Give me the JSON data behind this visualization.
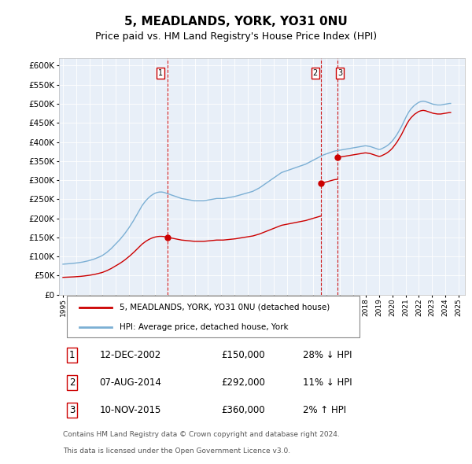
{
  "title": "5, MEADLANDS, YORK, YO31 0NU",
  "subtitle": "Price paid vs. HM Land Registry's House Price Index (HPI)",
  "title_fontsize": 11,
  "subtitle_fontsize": 9,
  "hpi_color": "#7bafd4",
  "price_color": "#cc0000",
  "vline_color": "#cc0000",
  "background_color": "#e8eff8",
  "ylim": [
    0,
    620000
  ],
  "yticks": [
    0,
    50000,
    100000,
    150000,
    200000,
    250000,
    300000,
    350000,
    400000,
    450000,
    500000,
    550000,
    600000
  ],
  "purchases": [
    {
      "date": 2002.95,
      "price": 150000,
      "label": "1"
    },
    {
      "date": 2014.6,
      "price": 292000,
      "label": "2"
    },
    {
      "date": 2015.86,
      "price": 360000,
      "label": "3"
    }
  ],
  "legend_entries": [
    "5, MEADLANDS, YORK, YO31 0NU (detached house)",
    "HPI: Average price, detached house, York"
  ],
  "table_rows": [
    {
      "num": "1",
      "date": "12-DEC-2002",
      "price": "£150,000",
      "info": "28% ↓ HPI"
    },
    {
      "num": "2",
      "date": "07-AUG-2014",
      "price": "£292,000",
      "info": "11% ↓ HPI"
    },
    {
      "num": "3",
      "date": "10-NOV-2015",
      "price": "£360,000",
      "info": "2% ↑ HPI"
    }
  ],
  "footnote1": "Contains HM Land Registry data © Crown copyright and database right 2024.",
  "footnote2": "This data is licensed under the Open Government Licence v3.0.",
  "hpi_monthly": {
    "start_year": 1995.0,
    "step": 0.08333,
    "values": [
      80000,
      80200,
      80400,
      80600,
      80800,
      81000,
      81200,
      81500,
      81800,
      82100,
      82400,
      82700,
      83000,
      83400,
      83800,
      84200,
      84600,
      85000,
      85600,
      86200,
      86800,
      87400,
      88000,
      88800,
      89600,
      90400,
      91200,
      92000,
      93000,
      94000,
      95200,
      96400,
      97600,
      98800,
      100000,
      101500,
      103000,
      105000,
      107000,
      109000,
      111000,
      113500,
      116000,
      118500,
      121000,
      124000,
      127000,
      130000,
      133000,
      136000,
      139000,
      142000,
      145000,
      148500,
      152000,
      155500,
      159000,
      163000,
      167000,
      171000,
      175000,
      179500,
      184000,
      188500,
      193000,
      198000,
      203000,
      208000,
      213000,
      218000,
      223000,
      228000,
      233000,
      237000,
      241000,
      244500,
      248000,
      251000,
      254000,
      256500,
      259000,
      261000,
      263000,
      264500,
      266000,
      267000,
      268000,
      268500,
      269000,
      269000,
      269000,
      268500,
      268000,
      267000,
      266000,
      265000,
      264000,
      263000,
      262000,
      261000,
      260000,
      259000,
      258000,
      257000,
      256000,
      255000,
      254000,
      253000,
      252000,
      251500,
      251000,
      250500,
      250000,
      249500,
      249000,
      248500,
      248000,
      247500,
      247000,
      246500,
      246000,
      246000,
      246000,
      246000,
      246000,
      246000,
      246000,
      246000,
      246000,
      246500,
      247000,
      247500,
      248000,
      248500,
      249000,
      249500,
      250000,
      250500,
      251000,
      251500,
      252000,
      252000,
      252000,
      252000,
      252000,
      252000,
      252000,
      252500,
      253000,
      253500,
      254000,
      254500,
      255000,
      255500,
      256000,
      256500,
      257000,
      257800,
      258600,
      259400,
      260200,
      261000,
      261800,
      262600,
      263400,
      264200,
      265000,
      265800,
      266600,
      267400,
      268200,
      269000,
      270000,
      271000,
      272500,
      274000,
      275500,
      277000,
      278500,
      280000,
      282000,
      284000,
      286000,
      288000,
      290000,
      292000,
      294000,
      296000,
      298000,
      300000,
      302000,
      304000,
      306000,
      308000,
      310000,
      312000,
      314000,
      316000,
      318000,
      320000,
      321000,
      322000,
      323000,
      324000,
      325000,
      326000,
      327000,
      328000,
      329000,
      330000,
      331000,
      332000,
      333000,
      334000,
      335000,
      336000,
      337000,
      338000,
      339000,
      340000,
      341000,
      342000,
      343500,
      345000,
      346500,
      348000,
      349500,
      351000,
      352500,
      354000,
      355500,
      357000,
      358500,
      360000,
      361500,
      363000,
      364500,
      366000,
      367000,
      368000,
      369000,
      370000,
      371000,
      372000,
      373000,
      374000,
      375000,
      376000,
      376500,
      377000,
      377500,
      378000,
      378500,
      379000,
      379500,
      380000,
      380500,
      381000,
      381500,
      382000,
      382500,
      383000,
      383500,
      384000,
      384500,
      385000,
      385500,
      386000,
      386500,
      387000,
      387500,
      388000,
      388500,
      389000,
      389500,
      390000,
      390000,
      389500,
      389000,
      388500,
      388000,
      387000,
      386000,
      385000,
      384000,
      383000,
      382000,
      381000,
      380500,
      381000,
      382000,
      383500,
      385000,
      386500,
      388000,
      390000,
      392000,
      394500,
      397000,
      400000,
      403000,
      407000,
      411000,
      415000,
      419000,
      424000,
      429000,
      434000,
      439000,
      445000,
      451000,
      457000,
      463000,
      469000,
      474000,
      479000,
      483000,
      487000,
      490000,
      493000,
      496000,
      498000,
      500000,
      502000,
      504000,
      505000,
      506000,
      506500,
      507000,
      506500,
      506000,
      505000,
      504000,
      503000,
      502000,
      501000,
      500000,
      499000,
      498500,
      498000,
      497500,
      497000,
      497000,
      497000,
      497000,
      497500,
      498000,
      498500,
      499000,
      499500,
      500000,
      500500,
      501000,
      501000
    ]
  }
}
